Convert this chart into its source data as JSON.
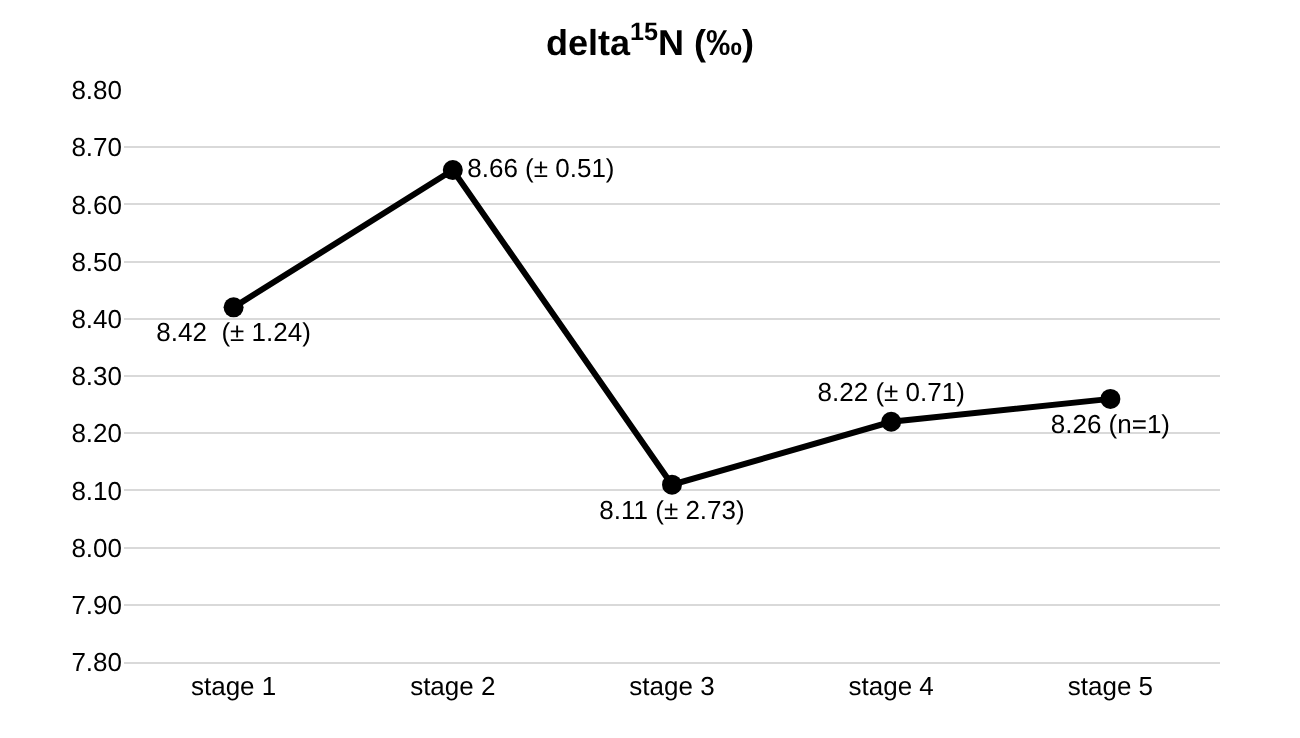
{
  "chart_data": {
    "type": "line",
    "title": "delta$^{15}$N (‰)",
    "categories": [
      "stage 1",
      "stage 2",
      "stage 3",
      "stage 4",
      "stage 5"
    ],
    "series": [
      {
        "color": "#000000",
        "values": [
          8.42,
          8.66,
          8.11,
          8.22,
          8.26
        ],
        "value_labels": [
          "8.42  (± 1.24)",
          "8.66 (± 0.51)",
          "8.11 (± 2.73)",
          "8.22 (± 0.71)",
          "8.26 (n=1)"
        ]
      }
    ],
    "ylim": [
      7.8,
      8.8
    ],
    "yticks": [
      {
        "value": 7.8,
        "label": "7.80"
      },
      {
        "value": 7.9,
        "label": "7.90"
      },
      {
        "value": 8.0,
        "label": "8.00"
      },
      {
        "value": 8.1,
        "label": "8.10"
      },
      {
        "value": 8.2,
        "label": "8.20"
      },
      {
        "value": 8.3,
        "label": "8.30"
      },
      {
        "value": 8.4,
        "label": "8.40"
      },
      {
        "value": 8.5,
        "label": "8.50"
      },
      {
        "value": 8.6,
        "label": "8.60"
      },
      {
        "value": 8.7,
        "label": "8.70"
      },
      {
        "value": 8.8,
        "label": "8.80"
      }
    ],
    "grid": "y",
    "marker": "circle",
    "line_style": "solid"
  }
}
